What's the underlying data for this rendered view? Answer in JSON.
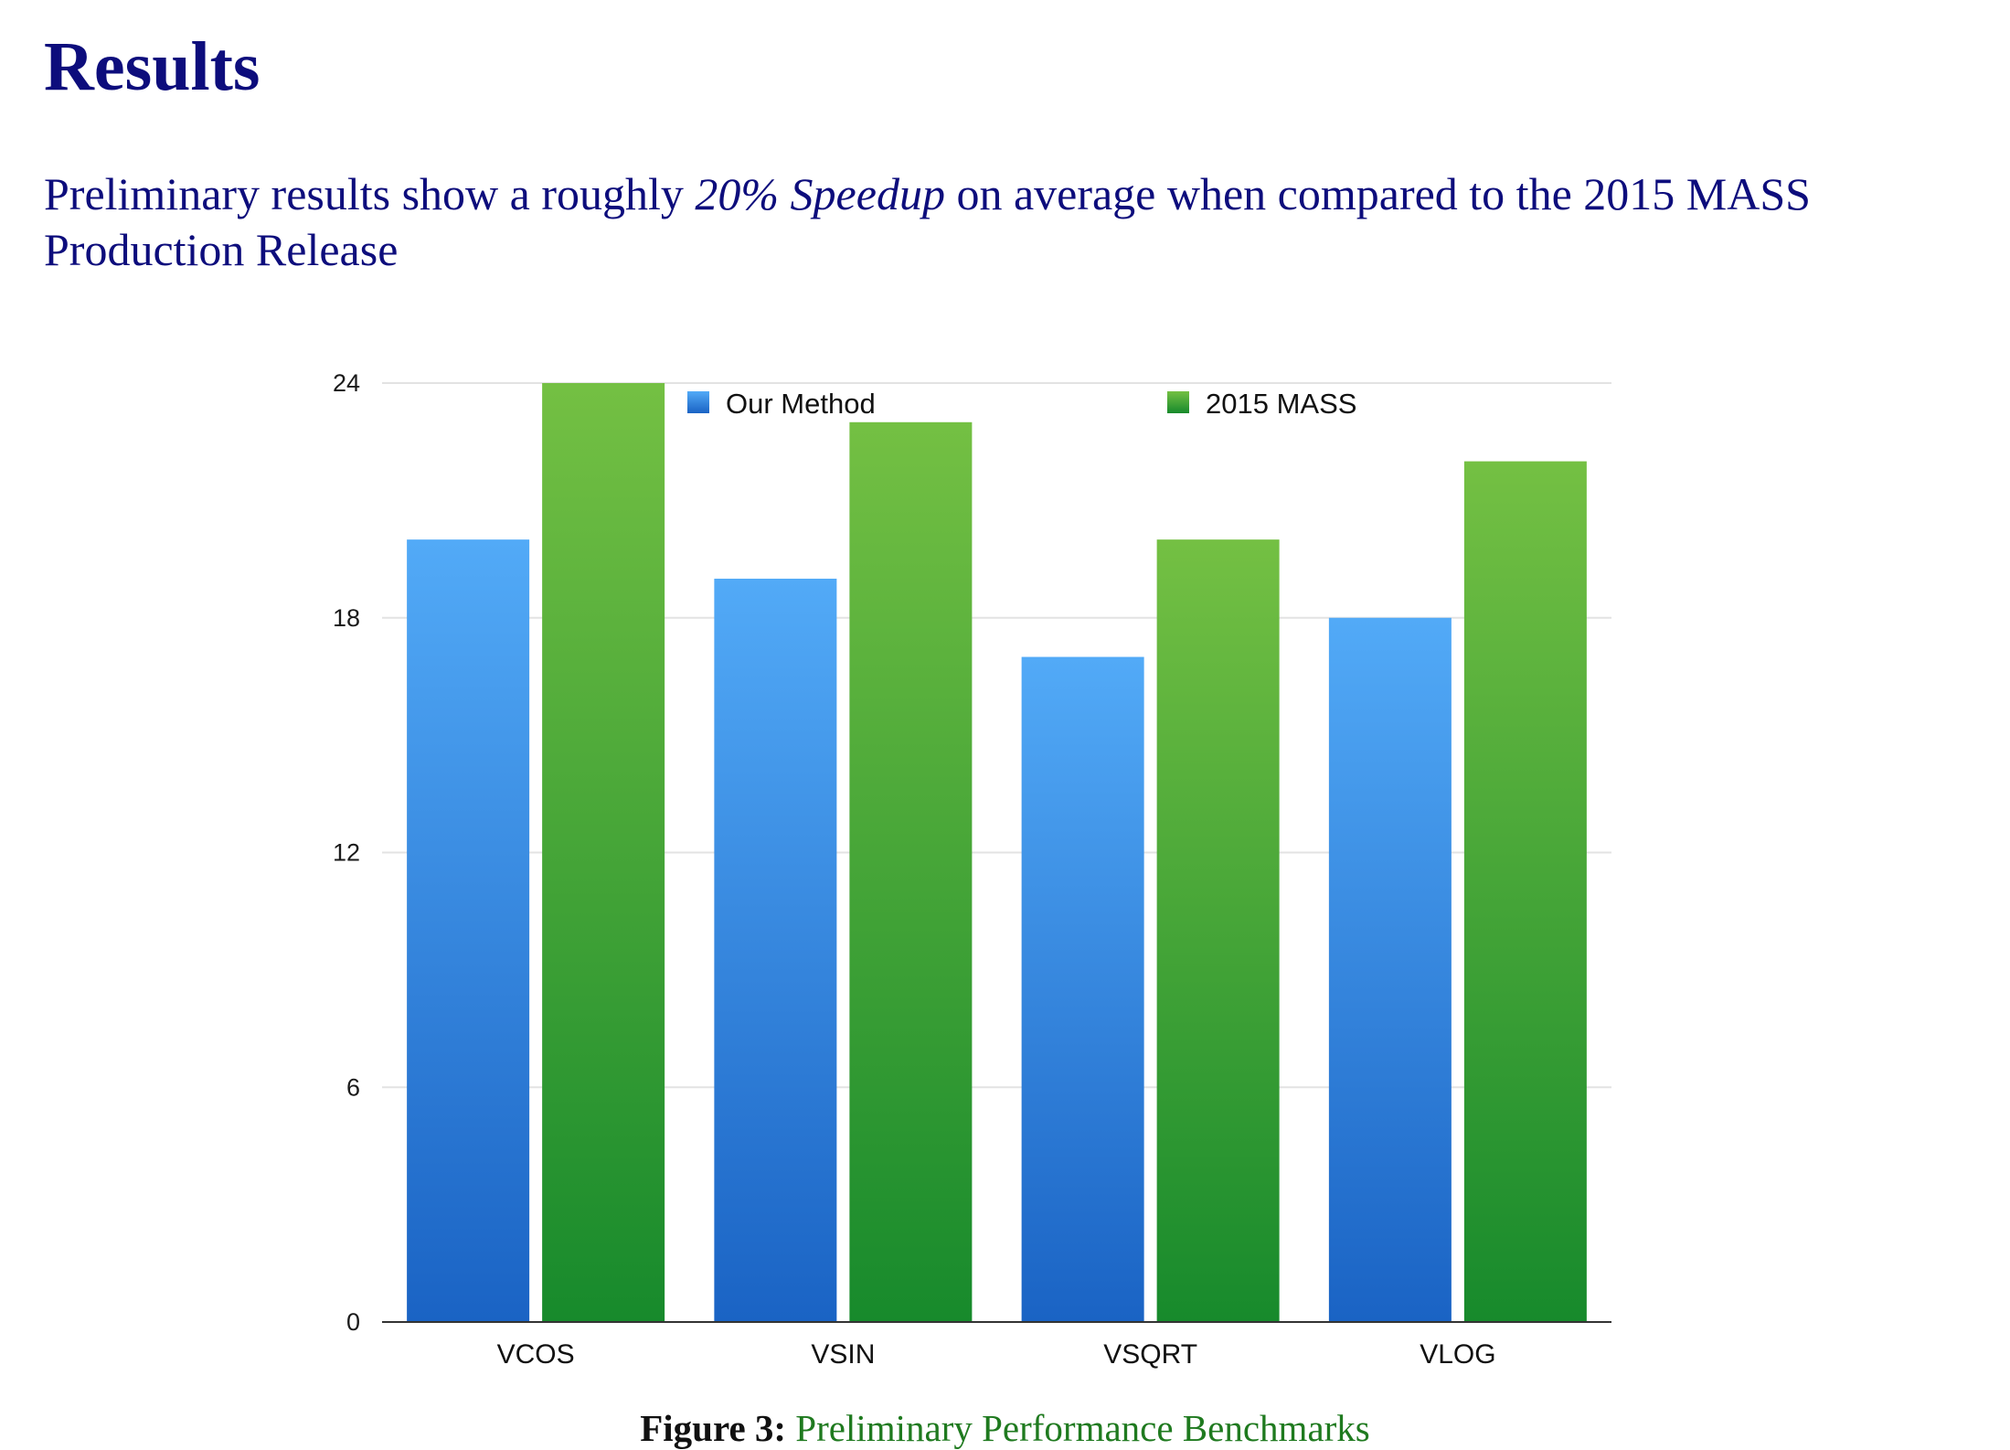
{
  "heading": "Results",
  "intro": {
    "before": "Preliminary results show a roughly ",
    "emphasis": "20% Speedup",
    "after": " on average when compared to the 2015 MASS Production Release"
  },
  "caption": {
    "label": "Figure 3:",
    "text": "Preliminary Performance Benchmarks"
  },
  "chart_data": {
    "type": "bar",
    "title": "",
    "xlabel": "",
    "ylabel": "",
    "categories": [
      "VCOS",
      "VSIN",
      "VSQRT",
      "VLOG"
    ],
    "series": [
      {
        "name": "Our Method",
        "values": [
          20,
          19,
          17,
          18
        ],
        "color_top": "#52aaf7",
        "color_bottom": "#1a63c4"
      },
      {
        "name": "2015 MASS",
        "values": [
          24,
          23,
          20,
          22
        ],
        "color_top": "#74c043",
        "color_bottom": "#178a2c"
      }
    ],
    "ylim": [
      0,
      24
    ],
    "yticks": [
      0,
      6,
      12,
      18,
      24
    ],
    "grid": true,
    "legend": "top"
  }
}
